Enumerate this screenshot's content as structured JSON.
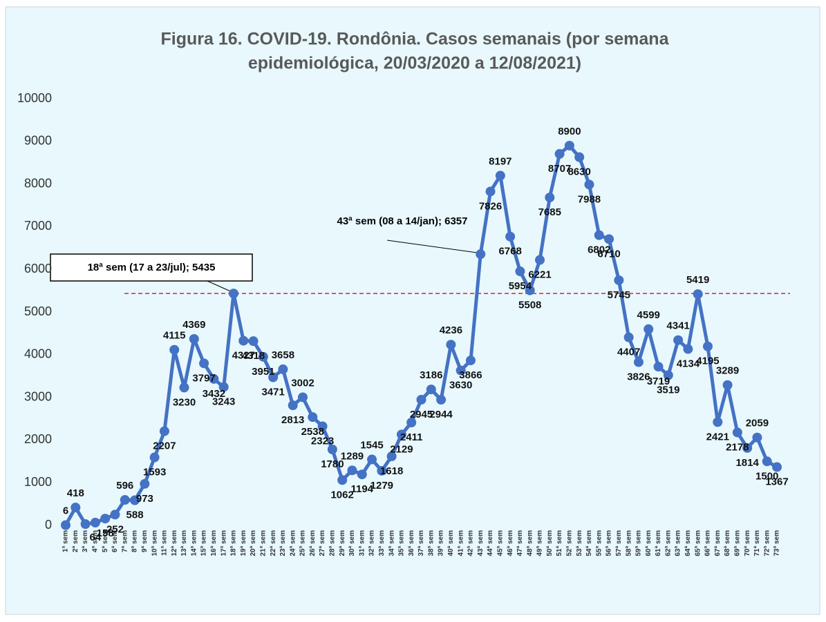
{
  "chart_data": {
    "type": "line",
    "title": "Figura 16. COVID-19. Rondônia. Casos semanais (por semana",
    "subtitle": "epidemiológica, 20/03/2020 a 12/08/2021)",
    "categories": [
      "1ª sem",
      "2ª sem",
      "3ª sem",
      "4ª sem",
      "5ª sem",
      "6ª sem",
      "7ª sem",
      "8ª sem",
      "9ª sem",
      "10ª sem",
      "11ª sem",
      "12ª sem",
      "13ª sem",
      "14ª sem",
      "15ª sem",
      "16ª sem",
      "17ª sem",
      "18ª sem",
      "19ª sem",
      "20ª sem",
      "21ª sem",
      "22ª sem",
      "23ª sem",
      "24ª sem",
      "25ª sem",
      "26ª sem",
      "27ª sem",
      "28ª sem",
      "29ª sem",
      "30ª sem",
      "31ª sem",
      "32ª sem",
      "33ª sem",
      "34ª sem",
      "35ª sem",
      "36ª sem",
      "37ª sem",
      "38ª sem",
      "39ª sem",
      "40ª sem",
      "41ª sem",
      "42ª sem",
      "43ª sem",
      "44ª sem",
      "45ª sem",
      "46ª sem",
      "47ª sem",
      "48ª sem",
      "49ª sem",
      "50ª sem",
      "51ª sem",
      "52ª sem",
      "53ª sem",
      "54ª sem",
      "55ª sem",
      "56ª sem",
      "57ª sem",
      "58ª sem",
      "59ª sem",
      "60ª sem",
      "61ª sem",
      "62ª sem",
      "63ª sem",
      "64ª sem",
      "65ª sem",
      "66ª sem",
      "67ª sem",
      "68ª sem",
      "69ª sem",
      "70ª sem",
      "71ª sem",
      "72ª sem",
      "73ª sem"
    ],
    "series": [
      {
        "name": "Casos",
        "color": "#4472c4",
        "values": [
          6,
          418,
          30,
          64,
          158,
          252,
          596,
          588,
          973,
          1593,
          2207,
          4115,
          3230,
          4369,
          3797,
          3432,
          3243,
          5435,
          4327,
          4318,
          3951,
          3471,
          3658,
          2813,
          3002,
          2538,
          2323,
          1780,
          1062,
          1289,
          1194,
          1545,
          1279,
          1618,
          2129,
          2411,
          2945,
          3186,
          2944,
          4236,
          3630,
          3866,
          6357,
          7826,
          8197,
          6768,
          5954,
          5508,
          6221,
          7685,
          8707,
          8900,
          8630,
          7988,
          6802,
          6710,
          5745,
          4407,
          3826,
          4599,
          3719,
          3519,
          4341,
          4134,
          5419,
          4195,
          2421,
          3289,
          2178,
          1814,
          2059,
          1500,
          1367
        ],
        "value_labels": [
          "6",
          "418",
          null,
          "64",
          "158",
          "252",
          "596",
          "588",
          "973",
          "1593",
          "2207",
          "4115",
          "3230",
          "4369",
          "3797",
          "3432",
          "3243",
          null,
          "4327",
          "4318",
          "3951",
          "3471",
          "3658",
          "2813",
          "3002",
          "2538",
          "2323",
          "1780",
          "1062",
          "1289",
          "1194",
          "1545",
          "1279",
          "1618",
          "2129",
          "2411",
          "2945",
          "3186",
          "2944",
          "4236",
          "3630",
          "3866",
          null,
          "7826",
          "8197",
          "6768",
          "5954",
          "5508",
          "6221",
          "7685",
          "8707",
          "8900",
          "8630",
          "7988",
          "6802",
          "6710",
          "5745",
          "4407",
          "3826",
          "4599",
          "3719",
          "3519",
          "4341",
          "4134",
          "5419",
          "4195",
          "2421",
          "3289",
          "2178",
          "1814",
          "2059",
          "1500",
          "1367"
        ]
      }
    ],
    "annotations": [
      "18ª sem (17 a 23/jul); 5435",
      "43ª sem (08 a 14/jan); 6357"
    ],
    "reference_line": 5435,
    "reference_color": "#e02020",
    "ylim": [
      0,
      10000
    ],
    "yticks": [
      0,
      1000,
      2000,
      3000,
      4000,
      5000,
      6000,
      7000,
      8000,
      9000,
      10000
    ],
    "grid": false
  }
}
